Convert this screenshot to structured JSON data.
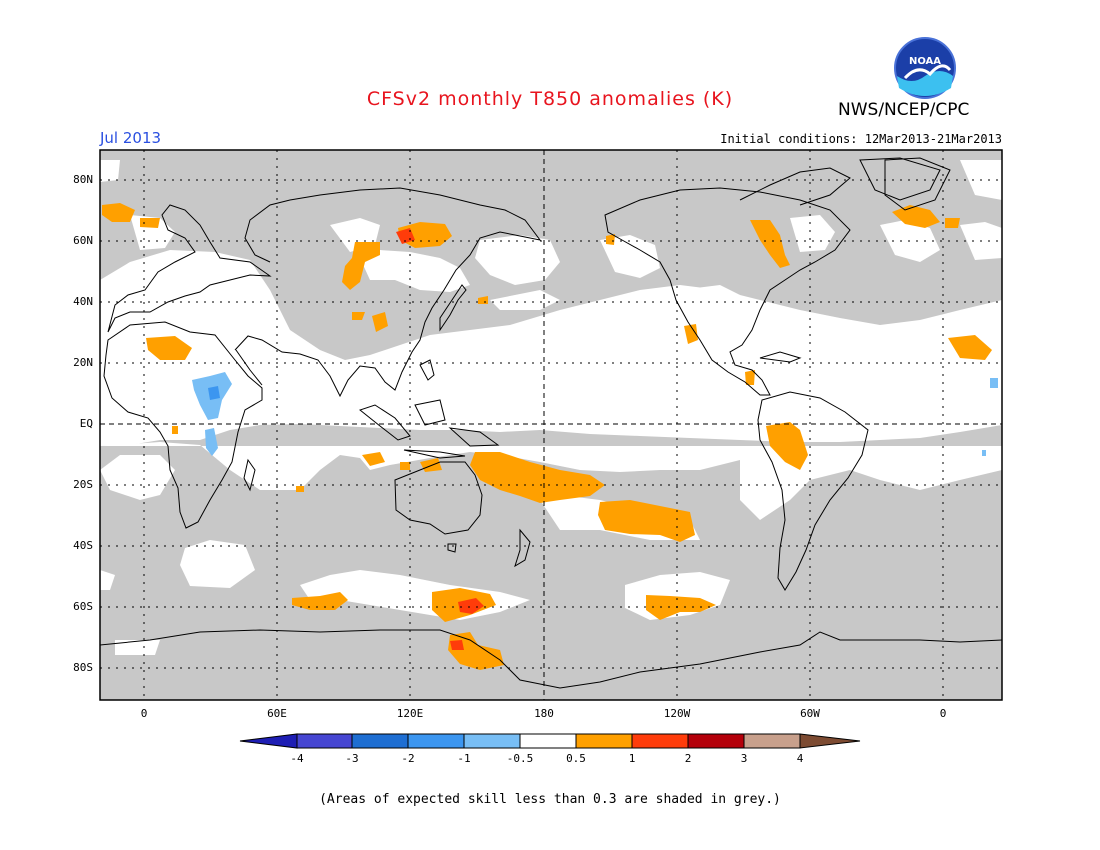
{
  "title": "CFSv2 monthly T850 anomalies (K)",
  "organization": "NWS/NCEP/CPC",
  "logo_text": "NOAA",
  "valid_month": "Jul 2013",
  "initial_conditions": "Initial conditions: 12Mar2013-21Mar2013",
  "footnote": "(Areas of expected skill less than 0.3 are shaded in grey.)",
  "map": {
    "lat_labels": [
      "80N",
      "60N",
      "40N",
      "20N",
      "EQ",
      "20S",
      "40S",
      "60S",
      "80S"
    ],
    "lon_labels": [
      "0",
      "60E",
      "120E",
      "180",
      "120W",
      "60W",
      "0"
    ],
    "colors": {
      "grey_mask": "#c8c8c8",
      "ocean_land": "#ffffff",
      "coast": "#000000"
    }
  },
  "colorbar": {
    "labels": [
      "-4",
      "-3",
      "-2",
      "-1",
      "-0.5",
      "0.5",
      "1",
      "2",
      "3",
      "4"
    ],
    "colors": [
      "#1e1eb4",
      "#4646d2",
      "#1e6ed2",
      "#3c96f0",
      "#78bef5",
      "#ffffff",
      "#ffa000",
      "#ff3c0a",
      "#b4000a",
      "#c8a08c",
      "#7d4b32"
    ]
  }
}
